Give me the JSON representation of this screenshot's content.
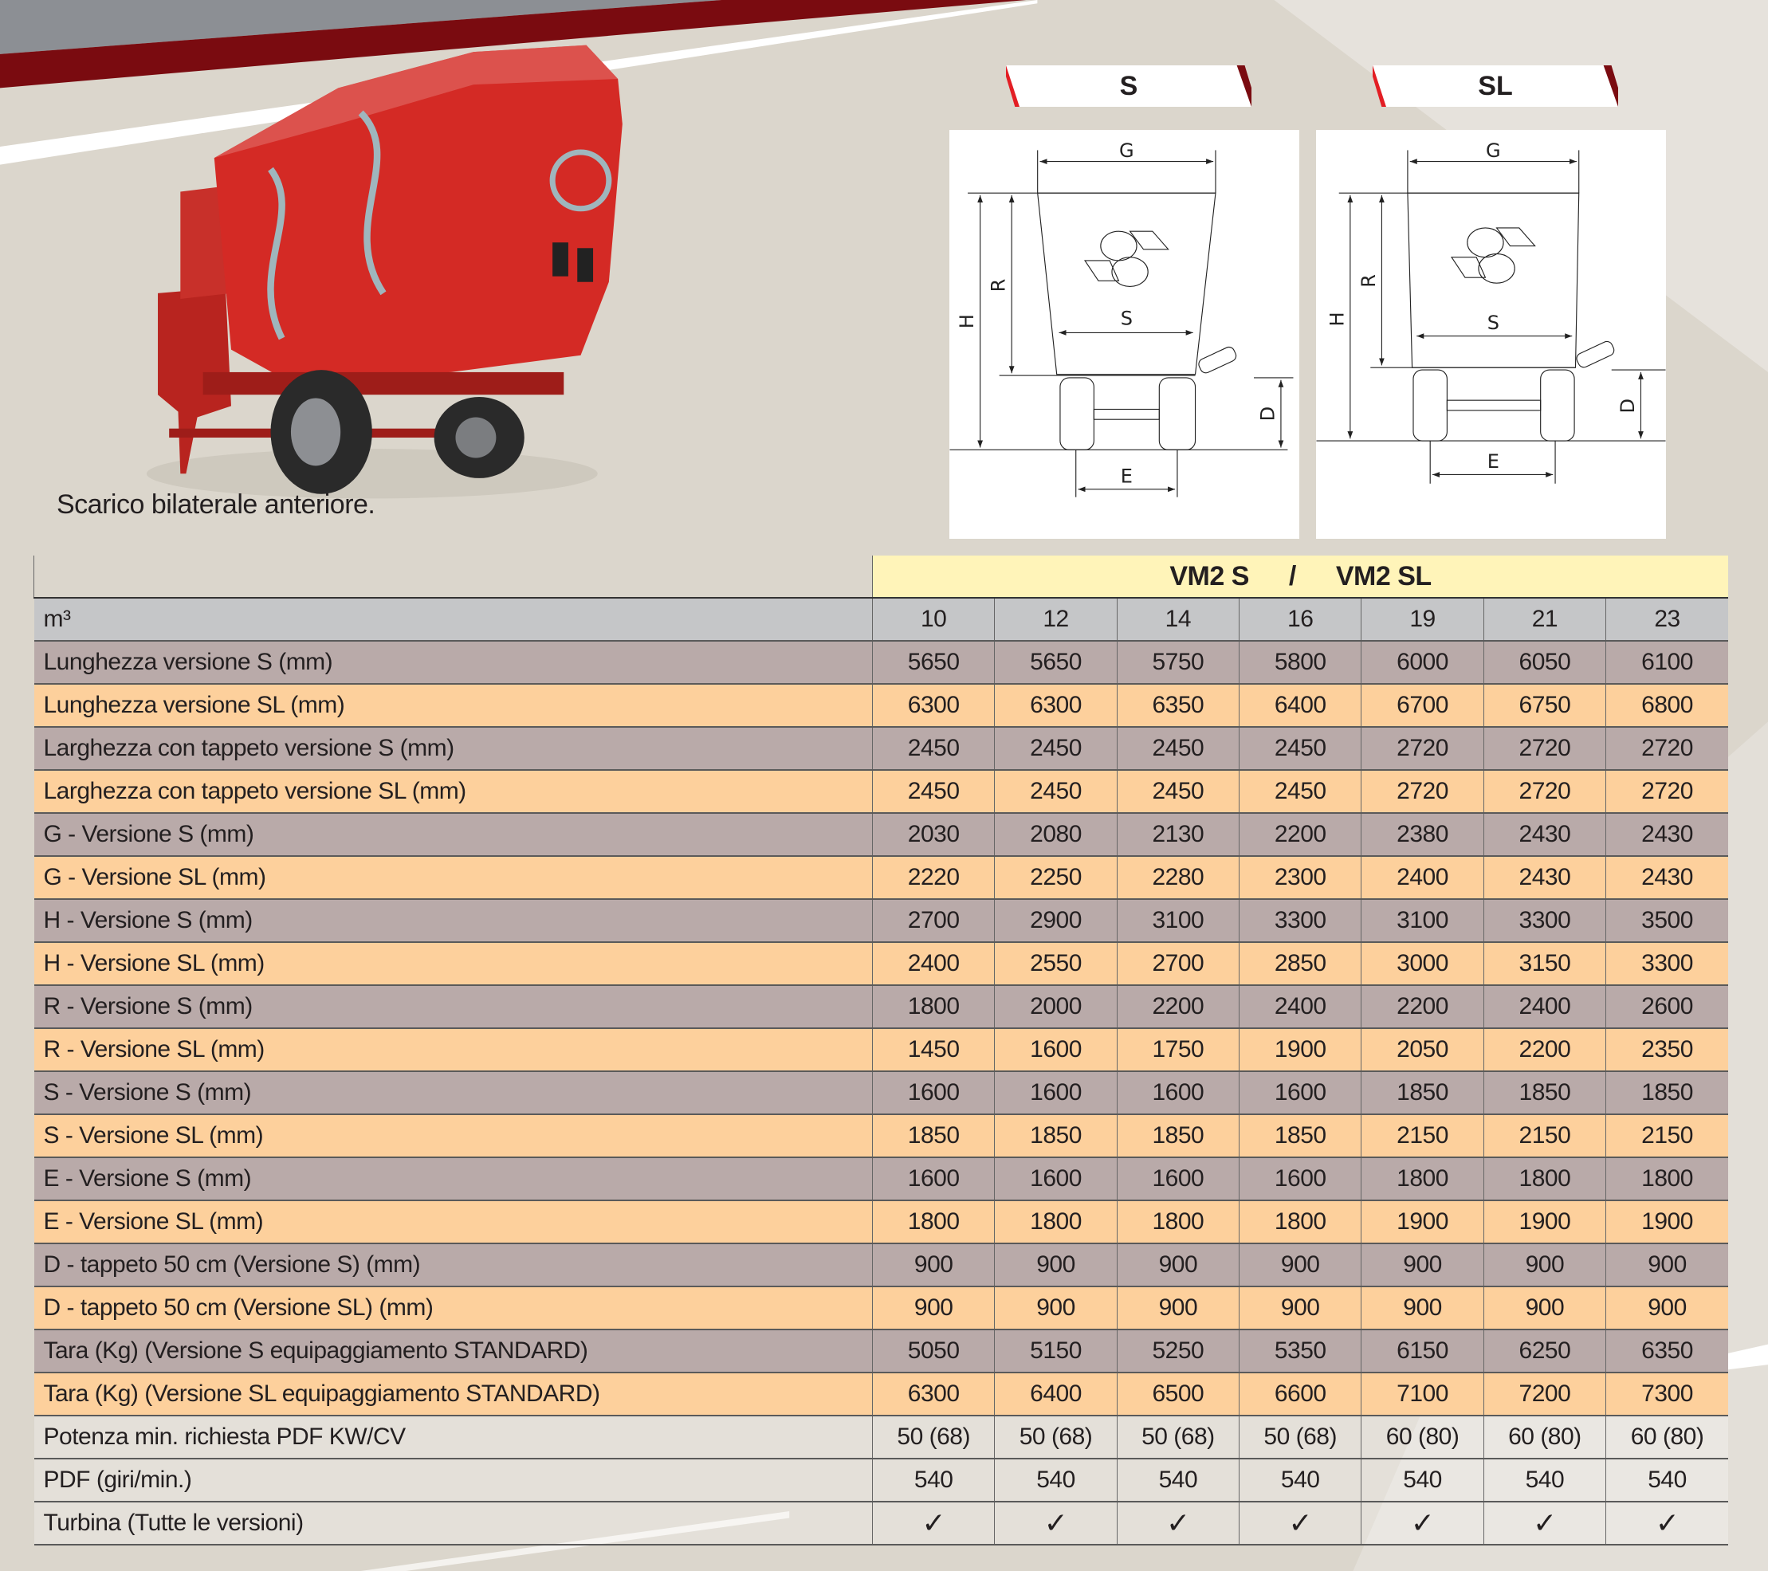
{
  "caption": "Scarico bilaterale anteriore.",
  "diagrams": {
    "s": {
      "banner": "S",
      "labels": {
        "g": "G",
        "h": "H",
        "r": "R",
        "s": "S",
        "d": "D",
        "e": "E"
      }
    },
    "sl": {
      "banner": "SL",
      "labels": {
        "g": "G",
        "h": "H",
        "r": "R",
        "s": "S",
        "d": "D",
        "e": "E"
      }
    }
  },
  "colors": {
    "accent_red": "#d71f26",
    "row_grey": "#b9aaa9",
    "row_orange": "#fdd09c",
    "header_yellow": "#fff4b9",
    "header_grey": "#c5c6c8"
  },
  "table": {
    "model_left": "VM2 S",
    "separator": "/",
    "model_right": "VM2 SL",
    "capacity_label": "m³",
    "capacities": [
      "10",
      "12",
      "14",
      "16",
      "19",
      "21",
      "23"
    ],
    "rows": [
      {
        "label": "Lunghezza versione S (mm)",
        "values": [
          "5650",
          "5650",
          "5750",
          "5800",
          "6000",
          "6050",
          "6100"
        ]
      },
      {
        "label": "Lunghezza versione SL (mm)",
        "values": [
          "6300",
          "6300",
          "6350",
          "6400",
          "6700",
          "6750",
          "6800"
        ]
      },
      {
        "label": "Larghezza con tappeto versione S (mm)",
        "values": [
          "2450",
          "2450",
          "2450",
          "2450",
          "2720",
          "2720",
          "2720"
        ]
      },
      {
        "label": "Larghezza con tappeto versione SL (mm)",
        "values": [
          "2450",
          "2450",
          "2450",
          "2450",
          "2720",
          "2720",
          "2720"
        ]
      },
      {
        "label": "G - Versione S (mm)",
        "values": [
          "2030",
          "2080",
          "2130",
          "2200",
          "2380",
          "2430",
          "2430"
        ]
      },
      {
        "label": "G - Versione SL (mm)",
        "values": [
          "2220",
          "2250",
          "2280",
          "2300",
          "2400",
          "2430",
          "2430"
        ]
      },
      {
        "label": "H - Versione S (mm)",
        "values": [
          "2700",
          "2900",
          "3100",
          "3300",
          "3100",
          "3300",
          "3500"
        ]
      },
      {
        "label": "H - Versione SL (mm)",
        "values": [
          "2400",
          "2550",
          "2700",
          "2850",
          "3000",
          "3150",
          "3300"
        ]
      },
      {
        "label": "R - Versione S (mm)",
        "values": [
          "1800",
          "2000",
          "2200",
          "2400",
          "2200",
          "2400",
          "2600"
        ]
      },
      {
        "label": "R - Versione SL (mm)",
        "values": [
          "1450",
          "1600",
          "1750",
          "1900",
          "2050",
          "2200",
          "2350"
        ]
      },
      {
        "label": "S - Versione S (mm)",
        "values": [
          "1600",
          "1600",
          "1600",
          "1600",
          "1850",
          "1850",
          "1850"
        ]
      },
      {
        "label": "S - Versione SL (mm)",
        "values": [
          "1850",
          "1850",
          "1850",
          "1850",
          "2150",
          "2150",
          "2150"
        ]
      },
      {
        "label": "E - Versione S (mm)",
        "values": [
          "1600",
          "1600",
          "1600",
          "1600",
          "1800",
          "1800",
          "1800"
        ]
      },
      {
        "label": "E - Versione SL (mm)",
        "values": [
          "1800",
          "1800",
          "1800",
          "1800",
          "1900",
          "1900",
          "1900"
        ]
      },
      {
        "label": "D - tappeto 50 cm (Versione S) (mm)",
        "values": [
          "900",
          "900",
          "900",
          "900",
          "900",
          "900",
          "900"
        ]
      },
      {
        "label": "D - tappeto 50 cm (Versione SL) (mm)",
        "values": [
          "900",
          "900",
          "900",
          "900",
          "900",
          "900",
          "900"
        ]
      },
      {
        "label": "Tara (Kg) (Versione S equipaggiamento STANDARD)",
        "values": [
          "5050",
          "5150",
          "5250",
          "5350",
          "6150",
          "6250",
          "6350"
        ]
      },
      {
        "label": "Tara (Kg) (Versione SL equipaggiamento STANDARD)",
        "values": [
          "6300",
          "6400",
          "6500",
          "6600",
          "7100",
          "7200",
          "7300"
        ]
      },
      {
        "label": "Potenza min. richiesta PDF KW/CV",
        "values": [
          "50 (68)",
          "50 (68)",
          "50 (68)",
          "50 (68)",
          "60 (80)",
          "60 (80)",
          "60 (80)"
        ]
      },
      {
        "label": "PDF (giri/min.)",
        "values": [
          "540",
          "540",
          "540",
          "540",
          "540",
          "540",
          "540"
        ]
      },
      {
        "label": "Turbina (Tutte le versioni)",
        "values": [
          "✓",
          "✓",
          "✓",
          "✓",
          "✓",
          "✓",
          "✓"
        ]
      }
    ]
  }
}
